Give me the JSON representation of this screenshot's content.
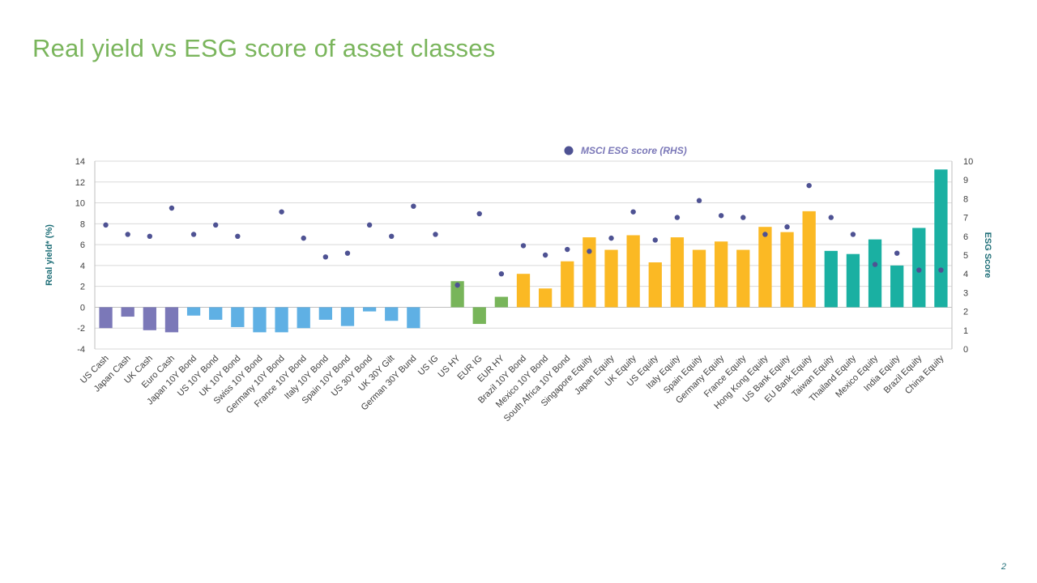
{
  "slide": {
    "title": "Real yield vs ESG score of asset classes",
    "page_number": "2"
  },
  "chart_data": {
    "type": "bar",
    "title": "",
    "ylabel": "Real yield* (%)",
    "y2label": "ESG Score",
    "ylim": [
      -4,
      14
    ],
    "y2lim": [
      0,
      10
    ],
    "yticks": [
      -4,
      -2,
      0,
      2,
      4,
      6,
      8,
      10,
      12,
      14
    ],
    "y2ticks": [
      0,
      1,
      2,
      3,
      4,
      5,
      6,
      7,
      8,
      9,
      10
    ],
    "grid": true,
    "legend": {
      "position": "top",
      "entries": [
        "MSCI ESG score (RHS)"
      ]
    },
    "colors": {
      "cash": "#7b78b8",
      "govt_bond": "#5fb0e4",
      "credit": "#78b55a",
      "em_bond_equity": "#fbb924",
      "asia_em_equity": "#1ab0a2",
      "marker": "#4e5293",
      "grid": "#d9d9d9",
      "axis_title": "#1f6f78"
    },
    "categories": [
      "US Cash",
      "Japan Cash",
      "UK Cash",
      "Euro Cash",
      "Japan 10Y Bond",
      "US 10Y Bond",
      "UK 10Y Bond",
      "Swiss 10Y Bond",
      "Germany 10Y Bond",
      "France 10Y Bond",
      "Italy 10Y Bond",
      "Spain 10Y Bond",
      "US 30Y Bond",
      "UK 30Y Gilt",
      "German 30Y Bund",
      "US IG",
      "US HY",
      "EUR IG",
      "EUR HY",
      "Brazil 10Y Bond",
      "Mexico 10Y Bond",
      "South Africa 10Y Bond",
      "Singapore Equity",
      "Japan Equity",
      "UK Equity",
      "US Equity",
      "Italy Equity",
      "Spain Equity",
      "Germany Equity",
      "France Equity",
      "Hong Kong Equity",
      "US Bank Equity",
      "EU Bank Equity",
      "Taiwan Equity",
      "Thailand Equity",
      "Mexico Equity",
      "India Equity",
      "Brazil Equity",
      "China Equity"
    ],
    "color_groups": [
      "cash",
      "cash",
      "cash",
      "cash",
      "govt_bond",
      "govt_bond",
      "govt_bond",
      "govt_bond",
      "govt_bond",
      "govt_bond",
      "govt_bond",
      "govt_bond",
      "govt_bond",
      "govt_bond",
      "govt_bond",
      "credit",
      "credit",
      "credit",
      "credit",
      "em_bond_equity",
      "em_bond_equity",
      "em_bond_equity",
      "em_bond_equity",
      "em_bond_equity",
      "em_bond_equity",
      "em_bond_equity",
      "em_bond_equity",
      "em_bond_equity",
      "em_bond_equity",
      "em_bond_equity",
      "em_bond_equity",
      "em_bond_equity",
      "em_bond_equity",
      "asia_em_equity",
      "asia_em_equity",
      "asia_em_equity",
      "asia_em_equity",
      "asia_em_equity",
      "asia_em_equity"
    ],
    "series": [
      {
        "name": "",
        "axis": "left",
        "kind": "bar",
        "values": [
          -2.0,
          -0.9,
          -2.2,
          -2.4,
          -0.8,
          -1.2,
          -1.9,
          -2.4,
          -2.4,
          -2.0,
          -1.2,
          -1.8,
          -0.4,
          -1.3,
          -2.0,
          0.0,
          2.5,
          -1.6,
          1.0,
          3.2,
          1.8,
          4.4,
          6.7,
          5.5,
          6.9,
          4.3,
          6.7,
          5.5,
          6.3,
          5.5,
          7.7,
          7.2,
          9.2,
          5.4,
          5.1,
          6.5,
          4.0,
          7.6,
          13.2
        ]
      },
      {
        "name": "MSCI ESG score (RHS)",
        "axis": "right",
        "kind": "scatter",
        "values": [
          6.6,
          6.1,
          6.0,
          7.5,
          6.1,
          6.6,
          6.0,
          null,
          7.3,
          5.9,
          4.9,
          5.1,
          6.6,
          6.0,
          7.6,
          6.1,
          3.4,
          7.2,
          4.0,
          5.5,
          5.0,
          5.3,
          5.2,
          5.9,
          7.3,
          5.8,
          7.0,
          7.9,
          7.1,
          7.0,
          6.1,
          6.5,
          8.7,
          7.0,
          6.1,
          4.5,
          5.1,
          4.2,
          4.2
        ]
      }
    ]
  }
}
